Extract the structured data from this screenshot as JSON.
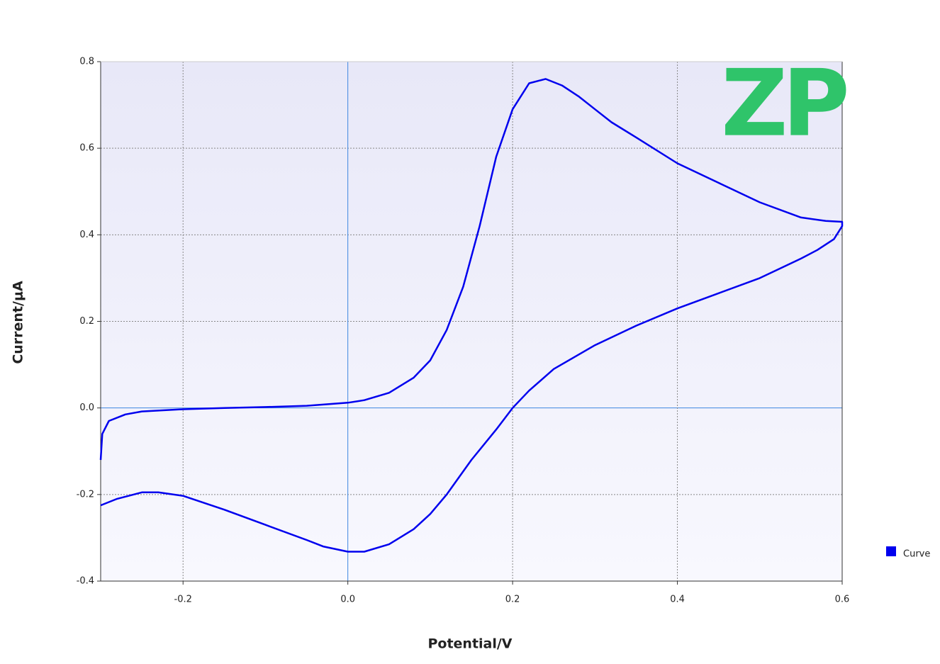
{
  "chart_data": {
    "type": "line",
    "xlabel": "Potential/V",
    "ylabel": "Current/μA",
    "watermark": "ZP",
    "xlim": [
      -0.3,
      0.6
    ],
    "ylim": [
      -0.4,
      0.8
    ],
    "xticks": [
      -0.2,
      {
        "value": 0,
        "label": "0.0"
      },
      0.2,
      0.4,
      0.6
    ],
    "yticks": [
      0.8,
      0.6,
      0.4,
      0.2,
      {
        "value": 0,
        "label": "0.0"
      },
      -0.2,
      -0.4
    ],
    "grid": true,
    "legend": "right",
    "series": [
      {
        "name": "Curve",
        "color": "#0000ee",
        "x": [
          -0.3,
          -0.298,
          -0.29,
          -0.27,
          -0.25,
          -0.2,
          -0.15,
          -0.1,
          -0.05,
          0.0,
          0.02,
          0.05,
          0.08,
          0.1,
          0.12,
          0.14,
          0.16,
          0.18,
          0.2,
          0.22,
          0.24,
          0.26,
          0.28,
          0.3,
          0.32,
          0.35,
          0.4,
          0.45,
          0.5,
          0.55,
          0.58,
          0.6,
          0.6,
          0.59,
          0.57,
          0.55,
          0.5,
          0.45,
          0.4,
          0.35,
          0.3,
          0.25,
          0.22,
          0.2,
          0.18,
          0.15,
          0.12,
          0.1,
          0.08,
          0.05,
          0.02,
          0.0,
          -0.03,
          -0.05,
          -0.1,
          -0.15,
          -0.2,
          -0.23,
          -0.25,
          -0.28,
          -0.3
        ],
        "values": [
          -0.12,
          -0.06,
          -0.03,
          -0.015,
          -0.008,
          -0.003,
          0.0,
          0.002,
          0.005,
          0.012,
          0.018,
          0.035,
          0.07,
          0.11,
          0.18,
          0.28,
          0.42,
          0.58,
          0.69,
          0.75,
          0.76,
          0.745,
          0.72,
          0.69,
          0.66,
          0.625,
          0.565,
          0.52,
          0.475,
          0.44,
          0.432,
          0.43,
          0.42,
          0.39,
          0.365,
          0.345,
          0.3,
          0.265,
          0.23,
          0.19,
          0.145,
          0.09,
          0.04,
          0.0,
          -0.05,
          -0.12,
          -0.2,
          -0.245,
          -0.28,
          -0.315,
          -0.332,
          -0.332,
          -0.32,
          -0.305,
          -0.27,
          -0.235,
          -0.203,
          -0.195,
          -0.195,
          -0.21,
          -0.225
        ]
      }
    ]
  }
}
